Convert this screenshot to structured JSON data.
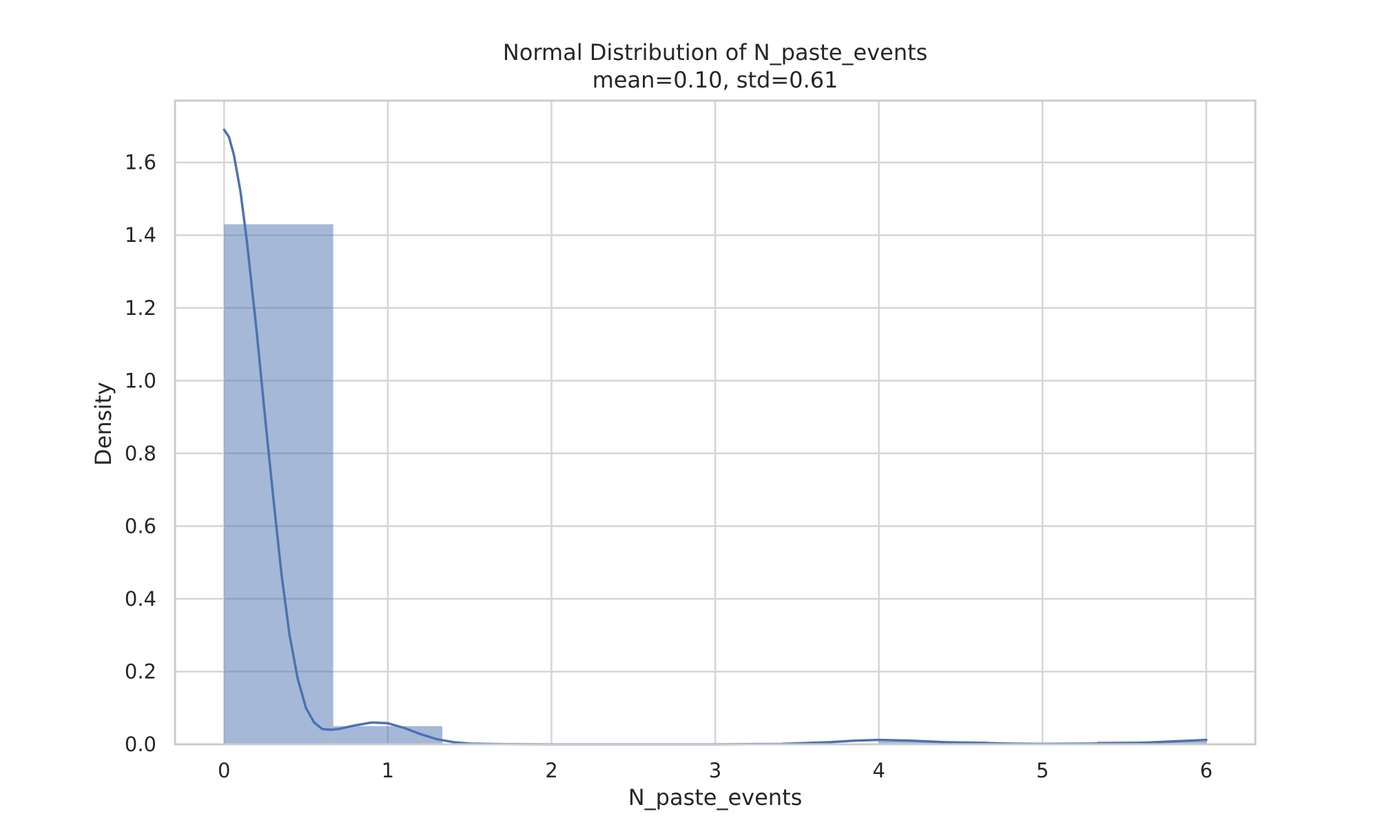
{
  "chart_data": {
    "type": "bar",
    "title": "Normal Distribution of N_paste_events",
    "subtitle": "mean=0.10, std=0.61",
    "xlabel": "N_paste_events",
    "ylabel": "Density",
    "xlim": [
      -0.3,
      6.3
    ],
    "ylim": [
      0,
      1.77
    ],
    "xticks": [
      0,
      1,
      2,
      3,
      4,
      5,
      6
    ],
    "xtick_labels": [
      "0",
      "1",
      "2",
      "3",
      "4",
      "5",
      "6"
    ],
    "yticks": [
      0.0,
      0.2,
      0.4,
      0.6,
      0.8,
      1.0,
      1.2,
      1.4,
      1.6
    ],
    "ytick_labels": [
      "0.0",
      "0.2",
      "0.4",
      "0.6",
      "0.8",
      "1.0",
      "1.2",
      "1.4",
      "1.6"
    ],
    "grid": true,
    "bar_color": "#4c72b0",
    "bar_opacity": 0.5,
    "line_color": "#4c72b0",
    "bins": [
      {
        "start": 0.0,
        "end": 0.6667,
        "density": 1.43
      },
      {
        "start": 0.6667,
        "end": 1.3333,
        "density": 0.05
      },
      {
        "start": 1.3333,
        "end": 2.0,
        "density": 0.0
      },
      {
        "start": 2.0,
        "end": 2.6667,
        "density": 0.0
      },
      {
        "start": 2.6667,
        "end": 3.3333,
        "density": 0.0
      },
      {
        "start": 3.3333,
        "end": 4.0,
        "density": 0.0
      },
      {
        "start": 4.0,
        "end": 4.6667,
        "density": 0.008
      },
      {
        "start": 4.6667,
        "end": 5.3333,
        "density": 0.0
      },
      {
        "start": 5.3333,
        "end": 6.0,
        "density": 0.008
      }
    ],
    "kde": {
      "x": [
        0.0,
        0.03,
        0.06,
        0.1,
        0.14,
        0.2,
        0.25,
        0.3,
        0.35,
        0.4,
        0.45,
        0.5,
        0.55,
        0.6,
        0.65,
        0.7,
        0.8,
        0.9,
        1.0,
        1.1,
        1.2,
        1.3,
        1.4,
        1.5,
        1.7,
        2.0,
        2.5,
        3.0,
        3.4,
        3.7,
        3.85,
        4.0,
        4.2,
        4.4,
        4.6,
        4.8,
        5.0,
        5.3,
        5.6,
        5.8,
        6.0
      ],
      "y": [
        1.69,
        1.67,
        1.62,
        1.52,
        1.38,
        1.13,
        0.9,
        0.68,
        0.47,
        0.3,
        0.18,
        0.1,
        0.06,
        0.042,
        0.04,
        0.042,
        0.052,
        0.06,
        0.058,
        0.045,
        0.028,
        0.014,
        0.006,
        0.002,
        0.0005,
        0.0,
        0.0,
        0.0,
        0.001,
        0.006,
        0.01,
        0.012,
        0.01,
        0.006,
        0.004,
        0.002,
        0.001,
        0.002,
        0.004,
        0.008,
        0.012
      ]
    }
  }
}
